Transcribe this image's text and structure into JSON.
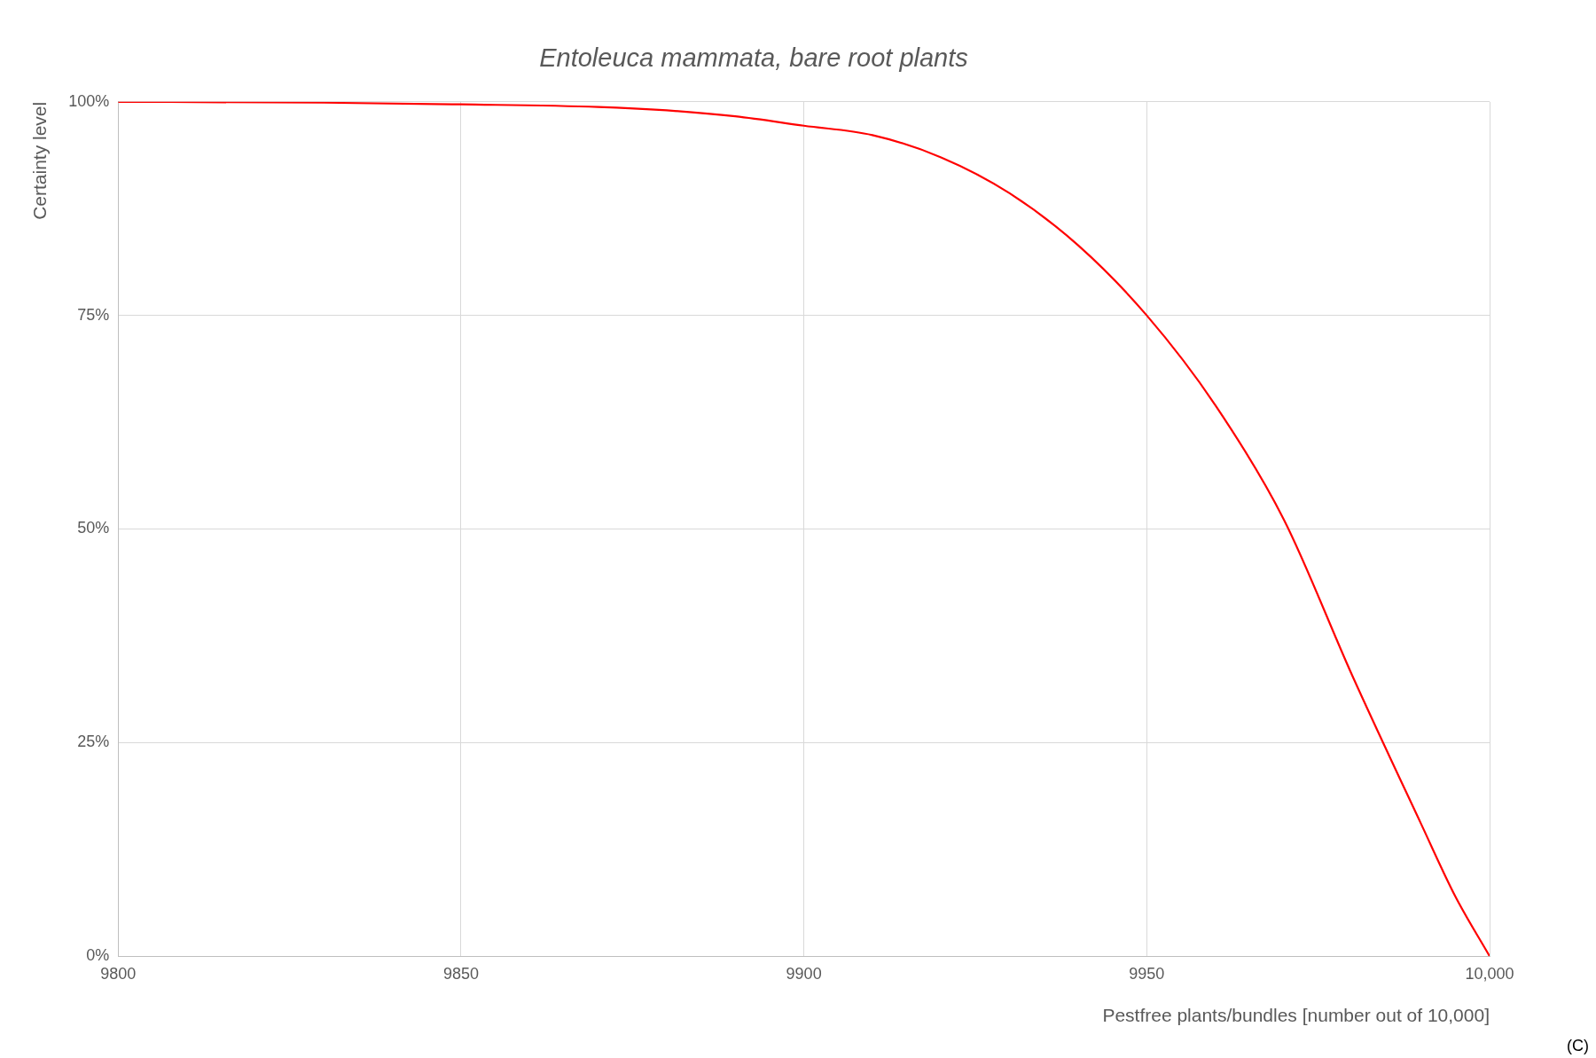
{
  "chart_data": {
    "type": "line",
    "title": "Entoleuca mammata, bare root plants",
    "xlabel": "Pestfree plants/bundles [number out of 10,000]",
    "ylabel": "Certainty level",
    "annotations": [
      "(C)"
    ],
    "series": [
      {
        "color": "#ff0000",
        "x": [
          9800,
          9830,
          9850,
          9870,
          9880,
          9890,
          9900,
          9910,
          9920,
          9930,
          9940,
          9950,
          9960,
          9970,
          9980,
          9990,
          9995,
          10000
        ],
        "values": [
          100,
          99.9,
          99.7,
          99.4,
          99,
          98.3,
          97.2,
          96.1,
          93.5,
          89.3,
          83.2,
          75,
          64.5,
          51.1,
          32.8,
          15.5,
          7,
          0
        ]
      }
    ],
    "xlim": [
      9800,
      10000
    ],
    "xticks": [
      9800,
      9850,
      9900,
      9950,
      {
        "value": 10000,
        "label": "10,000"
      }
    ],
    "ylim": [
      0,
      100
    ],
    "yticks": [
      {
        "value": 0,
        "label": "0%"
      },
      {
        "value": 25,
        "label": "25%"
      },
      {
        "value": 50,
        "label": "50%"
      },
      {
        "value": 75,
        "label": "75%"
      },
      {
        "value": 100,
        "label": "100%"
      }
    ],
    "grid": true,
    "legend": false,
    "marker": "none",
    "line_style": "solid"
  }
}
